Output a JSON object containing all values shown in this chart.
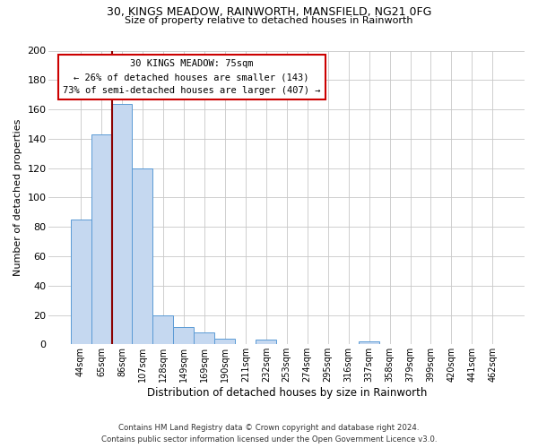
{
  "title_line1": "30, KINGS MEADOW, RAINWORTH, MANSFIELD, NG21 0FG",
  "title_line2": "Size of property relative to detached houses in Rainworth",
  "bar_labels": [
    "44sqm",
    "65sqm",
    "86sqm",
    "107sqm",
    "128sqm",
    "149sqm",
    "169sqm",
    "190sqm",
    "211sqm",
    "232sqm",
    "253sqm",
    "274sqm",
    "295sqm",
    "316sqm",
    "337sqm",
    "358sqm",
    "379sqm",
    "399sqm",
    "420sqm",
    "441sqm",
    "462sqm"
  ],
  "bar_values": [
    85,
    143,
    164,
    120,
    20,
    12,
    8,
    4,
    0,
    3,
    0,
    0,
    0,
    0,
    2,
    0,
    0,
    0,
    0,
    0,
    0
  ],
  "bar_color": "#c5d8f0",
  "bar_edge_color": "#5b9bd5",
  "ylabel": "Number of detached properties",
  "xlabel": "Distribution of detached houses by size in Rainworth",
  "ylim": [
    0,
    200
  ],
  "yticks": [
    0,
    20,
    40,
    60,
    80,
    100,
    120,
    140,
    160,
    180,
    200
  ],
  "vline_x": 1.5,
  "vline_color": "#8b0000",
  "annotation_title": "30 KINGS MEADOW: 75sqm",
  "annotation_line1": "← 26% of detached houses are smaller (143)",
  "annotation_line2": "73% of semi-detached houses are larger (407) →",
  "annotation_box_color": "#ffffff",
  "annotation_box_edge_color": "#cc0000",
  "footer_line1": "Contains HM Land Registry data © Crown copyright and database right 2024.",
  "footer_line2": "Contains public sector information licensed under the Open Government Licence v3.0.",
  "background_color": "#ffffff",
  "grid_color": "#c8c8c8"
}
